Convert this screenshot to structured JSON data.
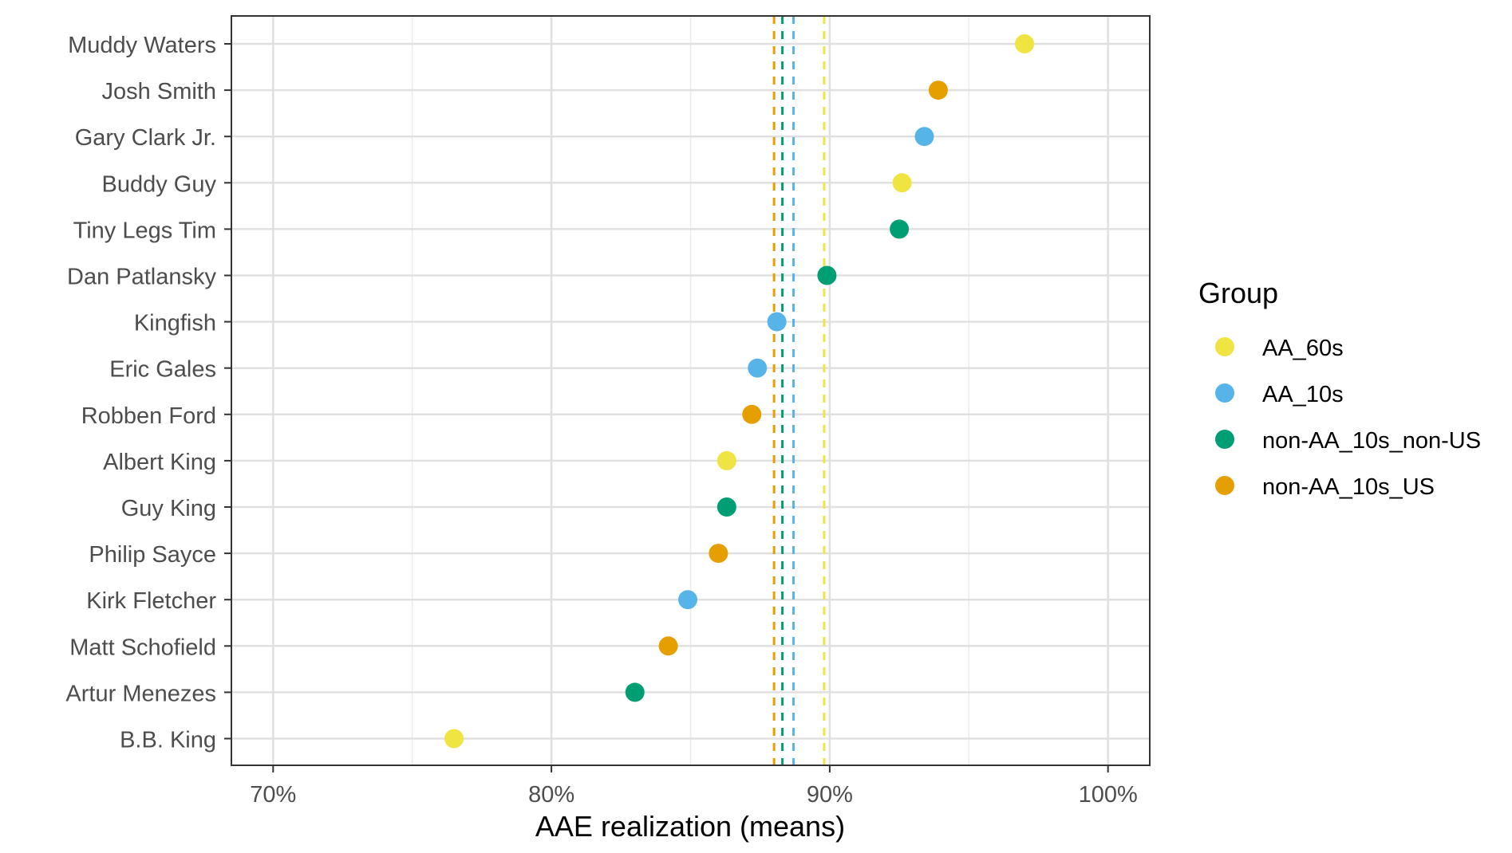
{
  "chart_data": {
    "type": "scatter",
    "title": "",
    "xlabel": "AAE realization (means)",
    "ylabel": "",
    "xlim": [
      68.5,
      101.5
    ],
    "x_ticks": [
      70,
      80,
      90,
      100
    ],
    "x_tick_labels": [
      "70%",
      "80%",
      "90%",
      "100%"
    ],
    "x_minor_ticks": [
      75,
      85,
      95
    ],
    "grid": true,
    "legend_position": "right",
    "legend_title": "Group",
    "groups": [
      {
        "name": "AA_60s",
        "color": "#F0E442",
        "mean": 89.8
      },
      {
        "name": "AA_10s",
        "color": "#56B4E9",
        "mean": 88.7
      },
      {
        "name": "non-AA_10s_non-US",
        "color": "#009E73",
        "mean": 88.3
      },
      {
        "name": "non-AA_10s_US",
        "color": "#E69F00",
        "mean": 88.0
      }
    ],
    "categories": [
      "Muddy Waters",
      "Josh Smith",
      "Gary Clark Jr.",
      "Buddy Guy",
      "Tiny Legs Tim",
      "Dan Patlansky",
      "Kingfish",
      "Eric Gales",
      "Robben Ford",
      "Albert King",
      "Guy King",
      "Philip Sayce",
      "Kirk Fletcher",
      "Matt Schofield",
      "Artur Menezes",
      "B.B. King"
    ],
    "points": [
      {
        "artist": "Muddy Waters",
        "value": 97.0,
        "group": "AA_60s"
      },
      {
        "artist": "Josh Smith",
        "value": 93.9,
        "group": "non-AA_10s_US"
      },
      {
        "artist": "Gary Clark Jr.",
        "value": 93.4,
        "group": "AA_10s"
      },
      {
        "artist": "Buddy Guy",
        "value": 92.6,
        "group": "AA_60s"
      },
      {
        "artist": "Tiny Legs Tim",
        "value": 92.5,
        "group": "non-AA_10s_non-US"
      },
      {
        "artist": "Dan Patlansky",
        "value": 89.9,
        "group": "non-AA_10s_non-US"
      },
      {
        "artist": "Kingfish",
        "value": 88.1,
        "group": "AA_10s"
      },
      {
        "artist": "Eric Gales",
        "value": 87.4,
        "group": "AA_10s"
      },
      {
        "artist": "Robben Ford",
        "value": 87.2,
        "group": "non-AA_10s_US"
      },
      {
        "artist": "Albert King",
        "value": 86.3,
        "group": "AA_60s"
      },
      {
        "artist": "Guy King",
        "value": 86.3,
        "group": "non-AA_10s_non-US"
      },
      {
        "artist": "Philip Sayce",
        "value": 86.0,
        "group": "non-AA_10s_US"
      },
      {
        "artist": "Kirk Fletcher",
        "value": 84.9,
        "group": "AA_10s"
      },
      {
        "artist": "Matt Schofield",
        "value": 84.2,
        "group": "non-AA_10s_US"
      },
      {
        "artist": "Artur Menezes",
        "value": 83.0,
        "group": "non-AA_10s_non-US"
      },
      {
        "artist": "B.B. King",
        "value": 76.5,
        "group": "AA_60s"
      }
    ]
  }
}
